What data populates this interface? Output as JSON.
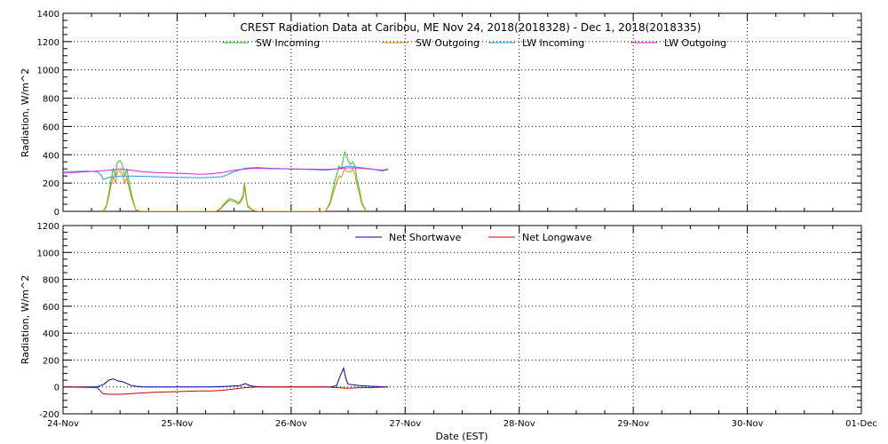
{
  "title": "CREST Radiation Data at Caribou, ME   Nov 24, 2018(2018328) - Dec  1, 2018(2018335)",
  "x_axis": {
    "title": "Date (EST)",
    "ticks": [
      "24-Nov",
      "25-Nov",
      "26-Nov",
      "27-Nov",
      "28-Nov",
      "29-Nov",
      "30-Nov",
      "01-Dec"
    ]
  },
  "chart_data": [
    {
      "type": "line",
      "ylabel": "Radiation, W/m^2",
      "ylim": [
        0,
        1400
      ],
      "yticks": [
        0,
        200,
        400,
        600,
        800,
        1000,
        1200,
        1400
      ],
      "xlim": [
        0,
        7
      ],
      "grid": true,
      "legend_placement": "top",
      "series": [
        {
          "name": "SW Incoming",
          "color": "#22cc22",
          "x": [
            0.35,
            0.38,
            0.4,
            0.42,
            0.44,
            0.46,
            0.47,
            0.48,
            0.5,
            0.52,
            0.54,
            0.56,
            0.58,
            0.6,
            0.62,
            0.64,
            0.68,
            1.34,
            1.38,
            1.42,
            1.46,
            1.5,
            1.54,
            1.56,
            1.58,
            1.59,
            1.6,
            1.61,
            1.62,
            1.66,
            1.7,
            2.3,
            2.34,
            2.38,
            2.42,
            2.44,
            2.46,
            2.47,
            2.48,
            2.5,
            2.52,
            2.54,
            2.56,
            2.58,
            2.6,
            2.62,
            2.66
          ],
          "y": [
            0,
            40,
            120,
            220,
            300,
            250,
            330,
            350,
            360,
            330,
            250,
            300,
            200,
            120,
            60,
            10,
            0,
            0,
            20,
            60,
            90,
            80,
            60,
            80,
            120,
            200,
            140,
            80,
            40,
            10,
            0,
            0,
            60,
            200,
            320,
            300,
            380,
            420,
            400,
            360,
            330,
            350,
            320,
            220,
            150,
            60,
            0
          ]
        },
        {
          "name": "SW Outgoing",
          "color": "#dd8800",
          "x": [
            0.35,
            0.38,
            0.4,
            0.42,
            0.44,
            0.46,
            0.47,
            0.48,
            0.5,
            0.52,
            0.54,
            0.56,
            0.58,
            0.6,
            0.62,
            0.64,
            0.68,
            1.34,
            1.38,
            1.42,
            1.46,
            1.5,
            1.54,
            1.56,
            1.58,
            1.59,
            1.6,
            1.61,
            1.62,
            1.66,
            1.7,
            2.3,
            2.34,
            2.38,
            2.42,
            2.44,
            2.46,
            2.47,
            2.48,
            2.5,
            2.52,
            2.54,
            2.56,
            2.58,
            2.6,
            2.62,
            2.66
          ],
          "y": [
            0,
            30,
            100,
            180,
            250,
            200,
            260,
            280,
            290,
            260,
            200,
            240,
            160,
            100,
            50,
            10,
            0,
            0,
            15,
            50,
            80,
            70,
            50,
            70,
            100,
            180,
            120,
            70,
            30,
            10,
            0,
            0,
            50,
            160,
            250,
            240,
            280,
            300,
            290,
            280,
            280,
            300,
            260,
            180,
            120,
            50,
            0
          ]
        },
        {
          "name": "LW Incoming",
          "color": "#2299dd",
          "x": [
            0,
            0.1,
            0.2,
            0.3,
            0.34,
            0.35,
            0.4,
            0.5,
            0.6,
            0.7,
            0.8,
            1.0,
            1.2,
            1.3,
            1.4,
            1.5,
            1.6,
            1.7,
            1.8,
            2.0,
            2.2,
            2.3,
            2.4,
            2.5,
            2.6,
            2.7,
            2.8,
            2.85
          ],
          "y": [
            280,
            282,
            285,
            280,
            250,
            225,
            240,
            250,
            250,
            248,
            245,
            240,
            238,
            240,
            245,
            280,
            305,
            310,
            305,
            300,
            295,
            290,
            300,
            320,
            310,
            300,
            285,
            295
          ]
        },
        {
          "name": "LW Outgoing",
          "color": "#dd22dd",
          "x": [
            0,
            0.1,
            0.2,
            0.3,
            0.4,
            0.5,
            0.6,
            0.7,
            0.8,
            1.0,
            1.2,
            1.3,
            1.4,
            1.5,
            1.6,
            1.7,
            1.8,
            2.0,
            2.2,
            2.3,
            2.4,
            2.5,
            2.6,
            2.7,
            2.8,
            2.85
          ],
          "y": [
            270,
            275,
            280,
            285,
            290,
            300,
            290,
            280,
            275,
            270,
            262,
            265,
            275,
            290,
            300,
            305,
            302,
            300,
            298,
            296,
            300,
            308,
            305,
            298,
            292,
            300
          ]
        }
      ]
    },
    {
      "type": "line",
      "ylabel": "Radiation, W/m^2",
      "ylim": [
        -200,
        1200
      ],
      "yticks": [
        -200,
        0,
        200,
        400,
        600,
        800,
        1000,
        1200
      ],
      "xlim": [
        0,
        7
      ],
      "grid": true,
      "legend_placement": "top",
      "series": [
        {
          "name": "Net Shortwave",
          "color": "#0000aa",
          "x": [
            0,
            0.3,
            0.36,
            0.4,
            0.44,
            0.48,
            0.52,
            0.56,
            0.6,
            0.64,
            0.7,
            1.0,
            1.3,
            1.45,
            1.55,
            1.6,
            1.62,
            1.66,
            1.75,
            2.0,
            2.25,
            2.35,
            2.4,
            2.42,
            2.44,
            2.46,
            2.48,
            2.5,
            2.55,
            2.6,
            2.7,
            2.85
          ],
          "y": [
            0,
            0,
            20,
            50,
            60,
            45,
            40,
            25,
            10,
            5,
            0,
            0,
            0,
            5,
            10,
            25,
            15,
            5,
            0,
            0,
            0,
            0,
            10,
            60,
            100,
            140,
            60,
            20,
            15,
            10,
            5,
            0
          ]
        },
        {
          "name": "Net Longwave",
          "color": "#cc0000",
          "x": [
            0,
            0.3,
            0.35,
            0.4,
            0.5,
            0.6,
            0.7,
            0.8,
            1.0,
            1.2,
            1.3,
            1.4,
            1.5,
            1.6,
            1.7,
            1.8,
            2.0,
            2.2,
            2.3,
            2.4,
            2.5,
            2.6,
            2.7,
            2.85
          ],
          "y": [
            0,
            -5,
            -50,
            -55,
            -55,
            -50,
            -45,
            -40,
            -35,
            -30,
            -30,
            -25,
            -15,
            -5,
            0,
            0,
            0,
            0,
            0,
            -5,
            -10,
            -5,
            -5,
            0
          ]
        }
      ]
    }
  ]
}
